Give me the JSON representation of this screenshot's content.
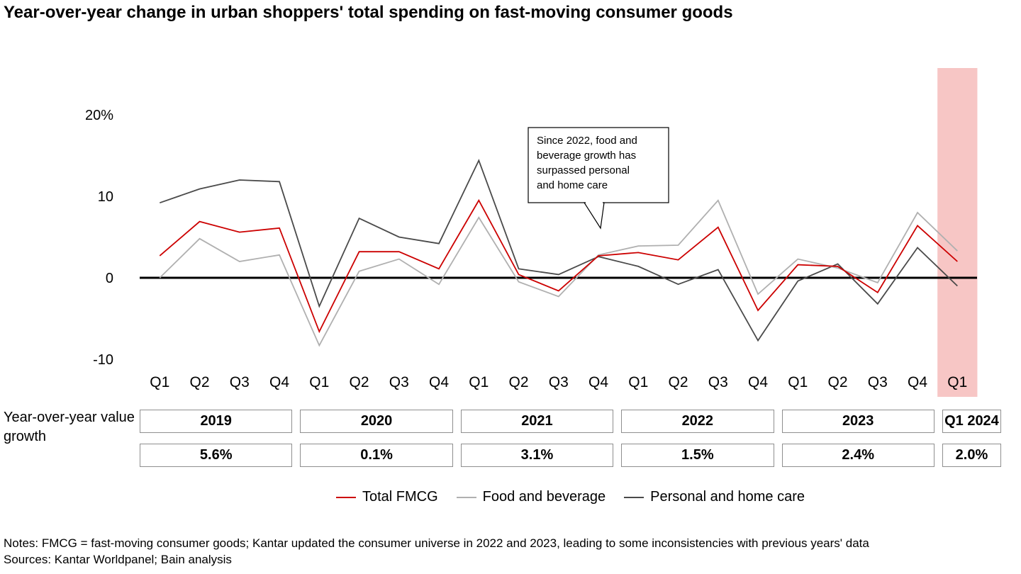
{
  "title": "Year-over-year change in urban shoppers' total spending on fast-moving consumer goods",
  "chart_data": {
    "type": "line",
    "x": [
      "2019 Q1",
      "2019 Q2",
      "2019 Q3",
      "2019 Q4",
      "2020 Q1",
      "2020 Q2",
      "2020 Q3",
      "2020 Q4",
      "2021 Q1",
      "2021 Q2",
      "2021 Q3",
      "2021 Q4",
      "2022 Q1",
      "2022 Q2",
      "2022 Q3",
      "2022 Q4",
      "2023 Q1",
      "2023 Q2",
      "2023 Q3",
      "2023 Q4",
      "2024 Q1"
    ],
    "quarter_labels": [
      "Q1",
      "Q2",
      "Q3",
      "Q4",
      "Q1",
      "Q2",
      "Q3",
      "Q4",
      "Q1",
      "Q2",
      "Q3",
      "Q4",
      "Q1",
      "Q2",
      "Q3",
      "Q4",
      "Q1",
      "Q2",
      "Q3",
      "Q4",
      "Q1"
    ],
    "series": [
      {
        "name": "Total FMCG",
        "color": "#cc0000",
        "values": [
          2.7,
          6.9,
          5.6,
          6.1,
          -6.6,
          3.2,
          3.2,
          1.1,
          9.5,
          0.4,
          -1.6,
          2.7,
          3.1,
          2.2,
          6.2,
          -4.0,
          1.6,
          1.4,
          -1.8,
          6.4,
          2.0
        ]
      },
      {
        "name": "Food and beverage",
        "color": "#b0b0b0",
        "values": [
          0.0,
          4.8,
          2.0,
          2.8,
          -8.3,
          0.8,
          2.3,
          -0.8,
          7.4,
          -0.5,
          -2.3,
          2.8,
          3.9,
          4.0,
          9.5,
          -2.0,
          2.3,
          1.2,
          -0.6,
          8.0,
          3.3
        ]
      },
      {
        "name": "Personal and home care",
        "color": "#4a4a4a",
        "values": [
          9.2,
          10.9,
          12.0,
          11.8,
          -3.5,
          7.3,
          5.0,
          4.2,
          14.4,
          1.1,
          0.4,
          2.6,
          1.4,
          -0.8,
          1.0,
          -7.7,
          -0.4,
          1.7,
          -3.2,
          3.7,
          -1.0
        ]
      }
    ],
    "y_ticks": [
      {
        "value": 20,
        "label": "20%"
      },
      {
        "value": 10,
        "label": "10"
      },
      {
        "value": 0,
        "label": "0"
      },
      {
        "value": -10,
        "label": "-10"
      }
    ],
    "ylim": [
      -12,
      22
    ],
    "grid": false,
    "legend_position": "bottom",
    "highlight": {
      "index": 20,
      "label": "Q1 2024",
      "color": "#f7c6c5"
    },
    "annotation": {
      "text": "Since 2022, food and beverage growth has surpassed personal and home care",
      "lines": [
        "Since 2022, food and",
        "beverage growth has",
        "surpassed personal",
        "and home care"
      ]
    }
  },
  "row_label": "Year-over-year value growth",
  "year_groups": [
    {
      "label": "2019",
      "growth": "5.6%"
    },
    {
      "label": "2020",
      "growth": "0.1%"
    },
    {
      "label": "2021",
      "growth": "3.1%"
    },
    {
      "label": "2022",
      "growth": "1.5%"
    },
    {
      "label": "2023",
      "growth": "2.4%"
    },
    {
      "label": "Q1 2024",
      "growth": "2.0%"
    }
  ],
  "legend": [
    {
      "label": "Total FMCG",
      "color": "#cc0000"
    },
    {
      "label": "Food and beverage",
      "color": "#b0b0b0"
    },
    {
      "label": "Personal and home care",
      "color": "#4a4a4a"
    }
  ],
  "notes": "Notes: FMCG = fast-moving consumer goods; Kantar updated the consumer universe in 2022 and 2023, leading to some inconsistencies with previous years' data",
  "sources": "Sources: Kantar Worldpanel; Bain analysis"
}
